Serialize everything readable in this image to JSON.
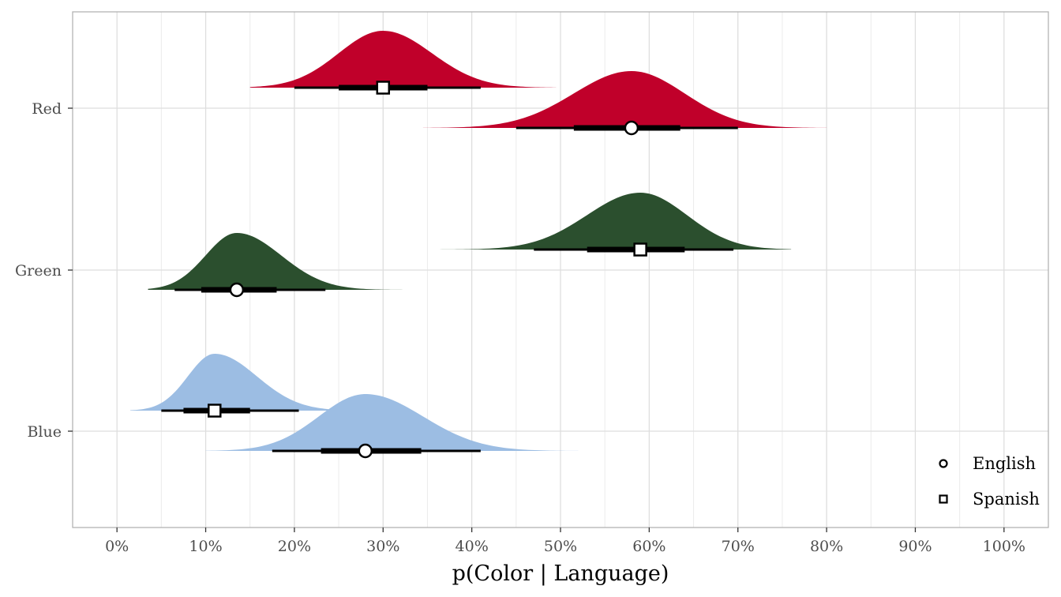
{
  "chart_data": {
    "type": "halfeye",
    "xlabel": "p(Color | Language)",
    "ylabel": "",
    "xlim": [
      -0.05,
      1.05
    ],
    "x_ticks": [
      0,
      0.1,
      0.2,
      0.3,
      0.4,
      0.5,
      0.6,
      0.7,
      0.8,
      0.9,
      1.0
    ],
    "x_tick_labels": [
      "0%",
      "10%",
      "20%",
      "30%",
      "40%",
      "50%",
      "60%",
      "70%",
      "80%",
      "90%",
      "100%"
    ],
    "categories": [
      "Red",
      "Green",
      "Blue"
    ],
    "grid": true,
    "legend": {
      "position": "bottom-right",
      "entries": [
        {
          "label": "English",
          "shape": "circle"
        },
        {
          "label": "Spanish",
          "shape": "square"
        }
      ]
    },
    "colors": {
      "Red": "#c0002a",
      "Green": "#2b4f2e",
      "Blue": "#9cbde3"
    },
    "series": [
      {
        "category": "Red",
        "language": "Spanish",
        "point": 0.3,
        "interval_66": [
          0.25,
          0.35
        ],
        "interval_95": [
          0.2,
          0.41
        ],
        "density_range": [
          0.15,
          0.495
        ]
      },
      {
        "category": "Red",
        "language": "English",
        "point": 0.58,
        "interval_66": [
          0.515,
          0.635
        ],
        "interval_95": [
          0.45,
          0.7
        ],
        "density_range": [
          0.345,
          0.8
        ]
      },
      {
        "category": "Green",
        "language": "Spanish",
        "point": 0.59,
        "interval_66": [
          0.53,
          0.64
        ],
        "interval_95": [
          0.47,
          0.695
        ],
        "density_range": [
          0.36,
          0.76
        ]
      },
      {
        "category": "Green",
        "language": "English",
        "point": 0.135,
        "interval_66": [
          0.095,
          0.18
        ],
        "interval_95": [
          0.065,
          0.235
        ],
        "density_range": [
          0.035,
          0.37
        ]
      },
      {
        "category": "Blue",
        "language": "Spanish",
        "point": 0.11,
        "interval_66": [
          0.075,
          0.15
        ],
        "interval_95": [
          0.05,
          0.205
        ],
        "density_range": [
          0.015,
          0.27
        ]
      },
      {
        "category": "Blue",
        "language": "English",
        "point": 0.28,
        "interval_66": [
          0.23,
          0.343
        ],
        "interval_95": [
          0.175,
          0.41
        ],
        "density_range": [
          0.1,
          0.52
        ]
      }
    ]
  }
}
